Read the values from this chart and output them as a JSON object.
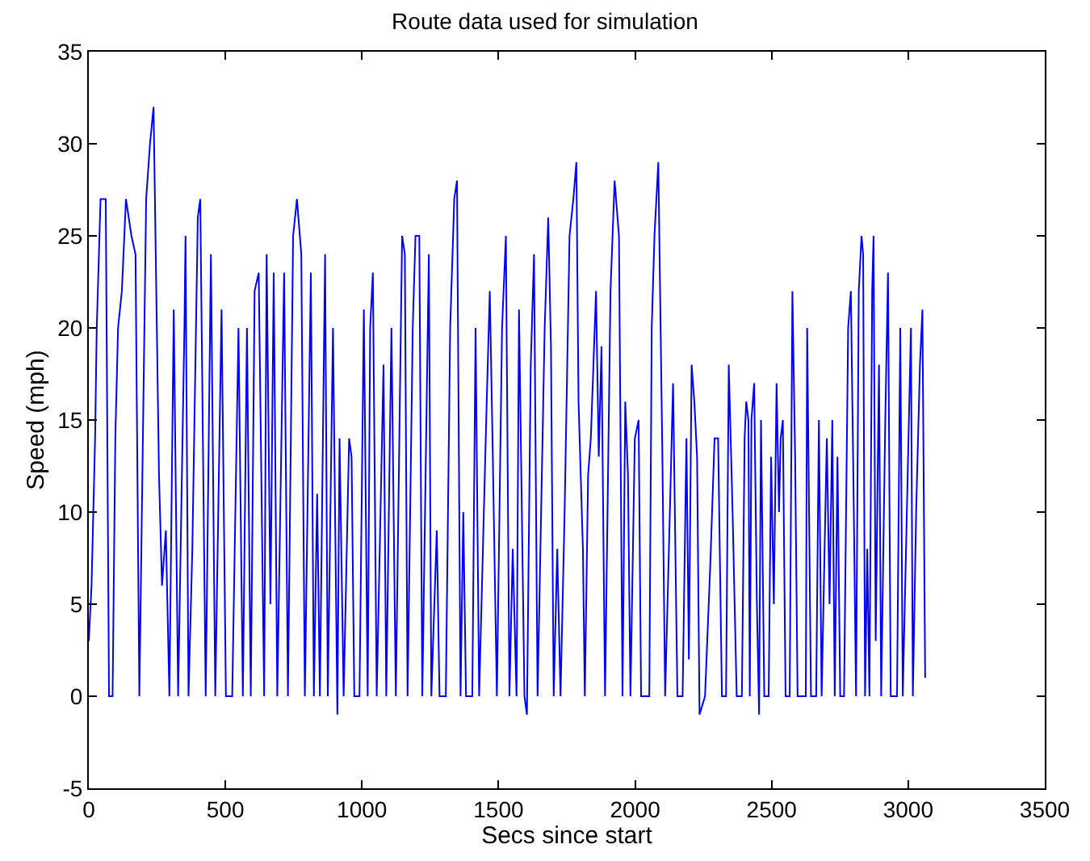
{
  "chart_data": {
    "type": "line",
    "title": "Route data used for simulation",
    "xlabel": "Secs since start",
    "ylabel": "Speed (mph)",
    "xlim": [
      0,
      3500
    ],
    "xticks": [
      0,
      500,
      1000,
      1500,
      2000,
      2500,
      3000,
      3500
    ],
    "ylim": [
      -5,
      35
    ],
    "yticks": [
      -5,
      0,
      5,
      10,
      15,
      20,
      25,
      30,
      35
    ],
    "marker": "none",
    "line_style": "solid",
    "x": [
      0,
      10,
      23,
      29,
      43,
      62,
      74,
      87,
      97,
      107,
      121,
      136,
      156,
      171,
      185,
      210,
      224,
      237,
      249,
      257,
      268,
      282,
      295,
      311,
      327,
      350,
      354,
      365,
      379,
      399,
      408,
      428,
      447,
      463,
      486,
      502,
      525,
      548,
      564,
      579,
      593,
      607,
      622,
      642,
      651,
      665,
      677,
      690,
      715,
      729,
      748,
      762,
      778,
      791,
      813,
      824,
      836,
      846,
      865,
      875,
      894,
      910,
      918,
      933,
      953,
      962,
      972,
      991,
      1007,
      1021,
      1030,
      1040,
      1054,
      1079,
      1089,
      1108,
      1124,
      1147,
      1157,
      1167,
      1186,
      1196,
      1210,
      1221,
      1245,
      1254,
      1274,
      1284,
      1307,
      1323,
      1338,
      1348,
      1361,
      1371,
      1381,
      1404,
      1416,
      1429,
      1455,
      1468,
      1478,
      1494,
      1513,
      1527,
      1540,
      1552,
      1566,
      1575,
      1595,
      1604,
      1618,
      1630,
      1643,
      1669,
      1682,
      1692,
      1702,
      1715,
      1727,
      1742,
      1760,
      1774,
      1785,
      1793,
      1809,
      1816,
      1828,
      1838,
      1857,
      1867,
      1877,
      1890,
      1910,
      1925,
      1941,
      1954,
      1964,
      1974,
      1983,
      1999,
      2013,
      2022,
      2052,
      2061,
      2071,
      2085,
      2100,
      2110,
      2129,
      2139,
      2155,
      2174,
      2188,
      2197,
      2207,
      2217,
      2227,
      2236,
      2256,
      2275,
      2291,
      2304,
      2318,
      2333,
      2343,
      2357,
      2372,
      2391,
      2401,
      2407,
      2415,
      2420,
      2426,
      2436,
      2446,
      2454,
      2461,
      2473,
      2489,
      2498,
      2508,
      2518,
      2527,
      2533,
      2541,
      2551,
      2566,
      2576,
      2586,
      2595,
      2625,
      2630,
      2644,
      2663,
      2673,
      2683,
      2702,
      2712,
      2722,
      2731,
      2741,
      2751,
      2765,
      2780,
      2790,
      2800,
      2809,
      2819,
      2829,
      2835,
      2842,
      2850,
      2858,
      2868,
      2873,
      2881,
      2893,
      2901,
      2916,
      2926,
      2936,
      2959,
      2971,
      2980,
      3010,
      3017,
      3029,
      3043,
      3052,
      3062
    ],
    "series": [
      {
        "color": "#0000ff",
        "values": [
          3,
          6,
          14,
          20,
          27,
          27,
          0,
          0,
          14,
          20,
          22,
          27,
          25,
          24,
          0,
          27,
          30,
          32,
          20,
          12,
          6,
          9,
          0,
          21,
          0,
          20,
          25,
          0,
          8,
          26,
          27,
          0,
          24,
          0,
          21,
          0,
          0,
          20,
          0,
          20,
          0,
          22,
          23,
          0,
          24,
          5,
          23,
          0,
          23,
          0,
          25,
          27,
          24,
          0,
          23,
          0,
          11,
          0,
          24,
          0,
          20,
          -1,
          14,
          0,
          14,
          13,
          0,
          0,
          21,
          0,
          20,
          23,
          0,
          18,
          0,
          20,
          0,
          25,
          24,
          0,
          20,
          25,
          25,
          0,
          24,
          0,
          9,
          0,
          0,
          20,
          27,
          28,
          0,
          10,
          0,
          0,
          20,
          0,
          15,
          22,
          14,
          0,
          20,
          25,
          0,
          8,
          0,
          21,
          0,
          -1,
          18,
          24,
          0,
          20,
          26,
          19,
          0,
          8,
          0,
          10,
          25,
          27,
          29,
          16,
          8,
          0,
          12,
          14,
          22,
          13,
          19,
          0,
          22,
          28,
          25,
          0,
          16,
          12,
          0,
          14,
          15,
          0,
          0,
          20,
          25,
          29,
          13,
          0,
          11,
          17,
          0,
          0,
          14,
          2,
          18,
          16,
          13,
          -1,
          0,
          7,
          14,
          14,
          0,
          0,
          18,
          10,
          0,
          0,
          14,
          16,
          15,
          0,
          15,
          17,
          5,
          -1,
          15,
          0,
          0,
          13,
          5,
          17,
          10,
          14,
          15,
          0,
          0,
          22,
          13,
          0,
          0,
          20,
          0,
          0,
          15,
          0,
          14,
          5,
          15,
          0,
          13,
          0,
          0,
          20,
          22,
          11,
          0,
          22,
          25,
          24,
          0,
          8,
          0,
          22,
          25,
          3,
          18,
          0,
          15,
          23,
          0,
          0,
          20,
          0,
          20,
          0,
          10,
          18,
          21,
          1
        ]
      }
    ]
  }
}
